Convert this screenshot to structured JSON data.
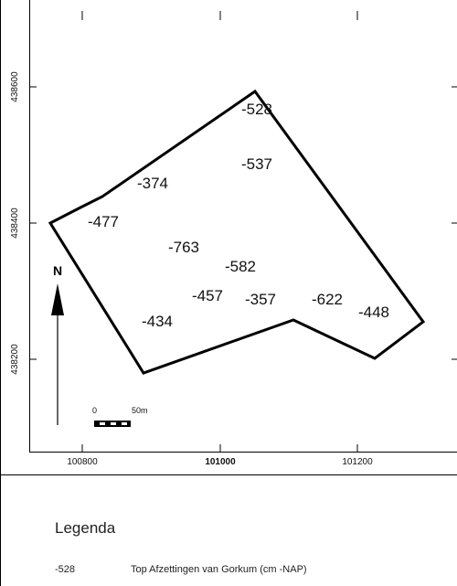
{
  "map": {
    "x_ticks": [
      "100800",
      "101000",
      "101200"
    ],
    "y_ticks": [
      "438600",
      "438400",
      "438200"
    ],
    "north_label": "N",
    "scale": {
      "start": "0",
      "end": "50m"
    },
    "depth_labels": [
      "-528",
      "-537",
      "-374",
      "-477",
      "-763",
      "-582",
      "-457",
      "-357",
      "-622",
      "-448",
      "-434"
    ],
    "colors": {
      "outline": "#000000",
      "frame": "#000000",
      "text": "#111111"
    }
  },
  "legend": {
    "title": "Legenda",
    "item_code": "-528",
    "item_description": "Top Afzettingen van Gorkum (cm -NAP)"
  }
}
